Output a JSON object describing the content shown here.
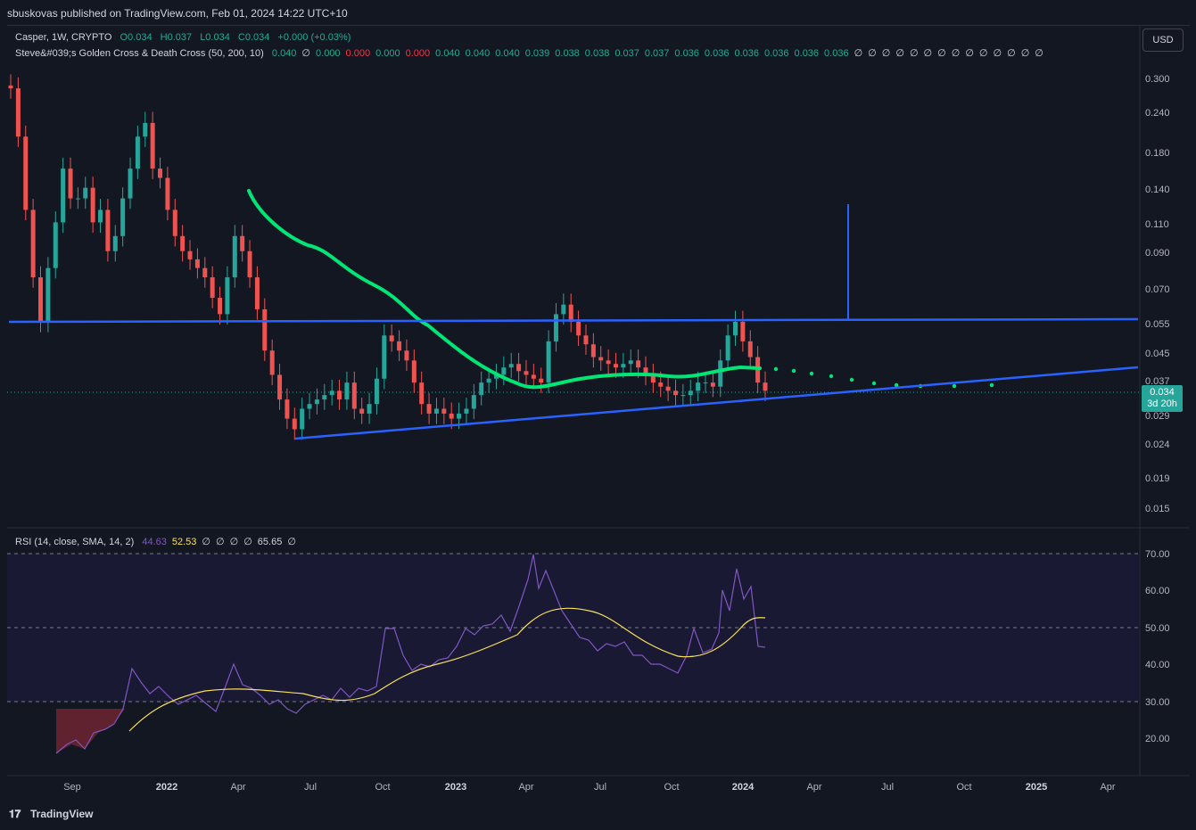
{
  "header": {
    "published_text": "sbuskovas published on TradingView.com, Feb 01, 2024 14:22 UTC+10"
  },
  "legend": {
    "symbol": "Casper, 1W, CRYPTO",
    "open": "O0.034",
    "high": "H0.037",
    "low": "L0.034",
    "close": "C0.034",
    "change": "+0.000 (+0.03%)",
    "indicator_name": "Steve&#039;s Golden Cross & Death Cross (50, 200, 10)",
    "indicator_values": [
      {
        "v": "0.040",
        "c": "#22ab94"
      },
      {
        "v": "∅",
        "c": "#d1d4dc"
      },
      {
        "v": "0.000",
        "c": "#22ab94"
      },
      {
        "v": "0.000",
        "c": "#f23645"
      },
      {
        "v": "0.000",
        "c": "#22ab94"
      },
      {
        "v": "0.000",
        "c": "#f23645"
      },
      {
        "v": "0.040",
        "c": "#22ab94"
      },
      {
        "v": "0.040",
        "c": "#22ab94"
      },
      {
        "v": "0.040",
        "c": "#22ab94"
      },
      {
        "v": "0.039",
        "c": "#22ab94"
      },
      {
        "v": "0.038",
        "c": "#22ab94"
      },
      {
        "v": "0.038",
        "c": "#22ab94"
      },
      {
        "v": "0.037",
        "c": "#22ab94"
      },
      {
        "v": "0.037",
        "c": "#22ab94"
      },
      {
        "v": "0.036",
        "c": "#22ab94"
      },
      {
        "v": "0.036",
        "c": "#22ab94"
      },
      {
        "v": "0.036",
        "c": "#22ab94"
      },
      {
        "v": "0.036",
        "c": "#22ab94"
      },
      {
        "v": "0.036",
        "c": "#22ab94"
      },
      {
        "v": "0.036",
        "c": "#22ab94"
      },
      {
        "v": "∅",
        "c": "#d1d4dc"
      },
      {
        "v": "∅",
        "c": "#d1d4dc"
      },
      {
        "v": "∅",
        "c": "#d1d4dc"
      },
      {
        "v": "∅",
        "c": "#d1d4dc"
      },
      {
        "v": "∅",
        "c": "#d1d4dc"
      },
      {
        "v": "∅",
        "c": "#d1d4dc"
      },
      {
        "v": "∅",
        "c": "#d1d4dc"
      },
      {
        "v": "∅",
        "c": "#d1d4dc"
      },
      {
        "v": "∅",
        "c": "#d1d4dc"
      },
      {
        "v": "∅",
        "c": "#d1d4dc"
      },
      {
        "v": "∅",
        "c": "#d1d4dc"
      },
      {
        "v": "∅",
        "c": "#d1d4dc"
      },
      {
        "v": "∅",
        "c": "#d1d4dc"
      },
      {
        "v": "∅",
        "c": "#d1d4dc"
      }
    ],
    "rsi_name": "RSI (14, close, SMA, 14, 2)",
    "rsi_values": [
      {
        "v": "44.63",
        "c": "#7e57c2"
      },
      {
        "v": "52.53",
        "c": "#f7e05a"
      },
      {
        "v": "∅",
        "c": "#d1d4dc"
      },
      {
        "v": "∅",
        "c": "#d1d4dc"
      },
      {
        "v": "∅",
        "c": "#d1d4dc"
      },
      {
        "v": "∅",
        "c": "#d1d4dc"
      },
      {
        "v": "65.65",
        "c": "#d1d4dc"
      },
      {
        "v": "∅",
        "c": "#d1d4dc"
      }
    ]
  },
  "currency_button": "USD",
  "price_axis": {
    "ticks": [
      "0.300",
      "0.240",
      "0.180",
      "0.140",
      "0.110",
      "0.090",
      "0.070",
      "0.055",
      "0.045",
      "0.037",
      "0.029",
      "0.024",
      "0.019",
      "0.015"
    ],
    "last_price": "0.034",
    "countdown": "3d 20h"
  },
  "rsi_axis": {
    "ticks": [
      "70.00",
      "60.00",
      "50.00",
      "40.00",
      "30.00",
      "20.00"
    ]
  },
  "time_axis": {
    "labels": [
      {
        "t": "Sep",
        "bold": false
      },
      {
        "t": "2022",
        "bold": true
      },
      {
        "t": "Apr",
        "bold": false
      },
      {
        "t": "Jul",
        "bold": false
      },
      {
        "t": "Oct",
        "bold": false
      },
      {
        "t": "2023",
        "bold": true
      },
      {
        "t": "Apr",
        "bold": false
      },
      {
        "t": "Jul",
        "bold": false
      },
      {
        "t": "Oct",
        "bold": false
      },
      {
        "t": "2024",
        "bold": true
      },
      {
        "t": "Apr",
        "bold": false
      },
      {
        "t": "Jul",
        "bold": false
      },
      {
        "t": "Oct",
        "bold": false
      },
      {
        "t": "2025",
        "bold": true
      },
      {
        "t": "Apr",
        "bold": false
      }
    ]
  },
  "chart_data": {
    "type": "candlestick",
    "interval": "1W",
    "price_scale": "log",
    "candles_close": [
      0.28,
      0.2,
      0.12,
      0.075,
      0.055,
      0.08,
      0.11,
      0.16,
      0.13,
      0.13,
      0.14,
      0.11,
      0.12,
      0.09,
      0.1,
      0.13,
      0.16,
      0.2,
      0.22,
      0.16,
      0.15,
      0.12,
      0.1,
      0.09,
      0.085,
      0.08,
      0.075,
      0.065,
      0.058,
      0.075,
      0.1,
      0.09,
      0.075,
      0.06,
      0.045,
      0.038,
      0.032,
      0.028,
      0.026,
      0.03,
      0.031,
      0.032,
      0.033,
      0.034,
      0.032,
      0.036,
      0.03,
      0.029,
      0.031,
      0.037,
      0.05,
      0.048,
      0.045,
      0.042,
      0.036,
      0.031,
      0.029,
      0.03,
      0.029,
      0.028,
      0.029,
      0.03,
      0.033,
      0.036,
      0.037,
      0.038,
      0.04,
      0.041,
      0.039,
      0.038,
      0.037,
      0.036,
      0.048,
      0.058,
      0.062,
      0.055,
      0.05,
      0.047,
      0.043,
      0.042,
      0.041,
      0.04,
      0.041,
      0.042,
      0.04,
      0.038,
      0.036,
      0.035,
      0.034,
      0.033,
      0.033,
      0.034,
      0.036,
      0.036,
      0.035,
      0.042,
      0.05,
      0.055,
      0.048,
      0.043,
      0.036,
      0.034
    ],
    "ma_line_color": "#00e676",
    "trendlines": [
      {
        "name": "horizontal resistance",
        "price": 0.055
      },
      {
        "name": "ascending support",
        "from_price": 0.025,
        "to_price": 0.04
      }
    ],
    "rsi_last": 44.63,
    "rsi_sma_last": 52.53,
    "rsi_bands": [
      70,
      50,
      30
    ]
  },
  "footer": {
    "brand": "TradingView"
  }
}
